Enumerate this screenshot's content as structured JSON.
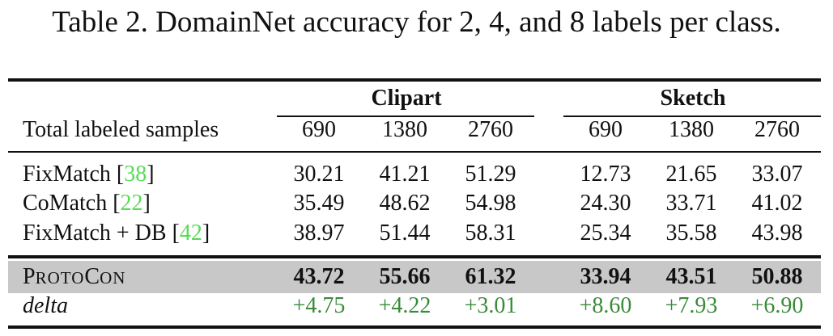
{
  "caption": "Table 2. DomainNet accuracy for 2, 4, and 8 labels per class.",
  "table": {
    "groups": [
      "Clipart",
      "Sketch"
    ],
    "row_header": "Total labeled samples",
    "sample_counts": [
      "690",
      "1380",
      "2760",
      "690",
      "1380",
      "2760"
    ],
    "rows": [
      {
        "method": "FixMatch",
        "ref": "38",
        "values": [
          "30.21",
          "41.21",
          "51.29",
          "12.73",
          "21.65",
          "33.07"
        ]
      },
      {
        "method": "CoMatch",
        "ref": "22",
        "values": [
          "35.49",
          "48.62",
          "54.98",
          "24.30",
          "33.71",
          "41.02"
        ]
      },
      {
        "method": "FixMatch + DB",
        "ref": "42",
        "values": [
          "38.97",
          "51.44",
          "58.31",
          "25.34",
          "35.58",
          "43.98"
        ]
      }
    ],
    "protocon": {
      "name_parts": [
        "P",
        "ROTO",
        "C",
        "ON"
      ],
      "values": [
        "43.72",
        "55.66",
        "61.32",
        "33.94",
        "43.51",
        "50.88"
      ]
    },
    "delta": {
      "label": "delta",
      "values": [
        "+4.75",
        "+4.22",
        "+3.01",
        "+8.60",
        "+7.93",
        "+6.90"
      ]
    }
  }
}
